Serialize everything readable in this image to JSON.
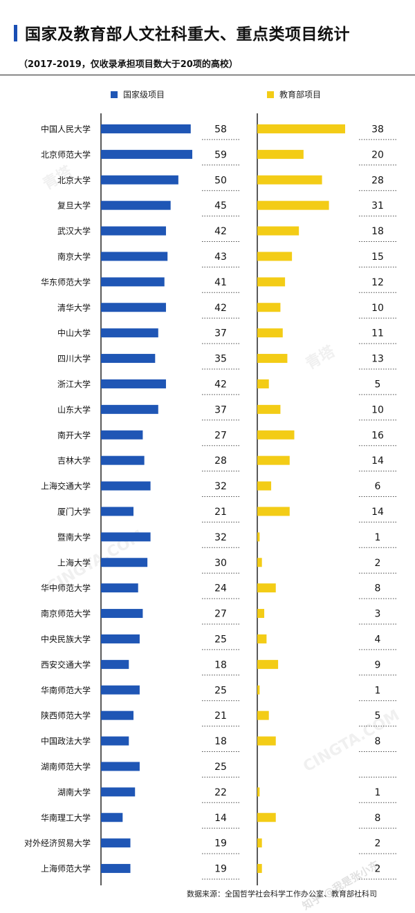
{
  "header": {
    "title": "国家及教育部人文社科重大、重点类项目统计",
    "subtitle": "（2017-2019，仅收录承担项目数大于20项的高校）"
  },
  "legend": {
    "national": "国家级项目",
    "ministry": "教育部项目"
  },
  "source": "数据来源：全国哲学社会科学工作办公室、教育部社科司",
  "watermark": {
    "brand": "青塔",
    "site": "CINGTA.COM",
    "footer_mark": "知乎 @我是张小东"
  },
  "colors": {
    "national": "#1f56b5",
    "ministry": "#f3cc16"
  },
  "chart_data": {
    "type": "bar",
    "orientation": "horizontal",
    "categories": [
      "中国人民大学",
      "北京师范大学",
      "北京大学",
      "复旦大学",
      "武汉大学",
      "南京大学",
      "华东师范大学",
      "清华大学",
      "中山大学",
      "四川大学",
      "浙江大学",
      "山东大学",
      "南开大学",
      "吉林大学",
      "上海交通大学",
      "厦门大学",
      "暨南大学",
      "上海大学",
      "华中师范大学",
      "南京师范大学",
      "中央民族大学",
      "西安交通大学",
      "华南师范大学",
      "陕西师范大学",
      "中国政法大学",
      "湖南师范大学",
      "湖南大学",
      "华南理工大学",
      "对外经济贸易大学",
      "上海师范大学"
    ],
    "series": [
      {
        "name": "国家级项目",
        "values": [
          58,
          59,
          50,
          45,
          42,
          43,
          41,
          42,
          37,
          35,
          42,
          37,
          27,
          28,
          32,
          21,
          32,
          30,
          24,
          27,
          25,
          18,
          25,
          21,
          18,
          25,
          22,
          14,
          19,
          19
        ]
      },
      {
        "name": "教育部项目",
        "values": [
          38,
          20,
          28,
          31,
          18,
          15,
          12,
          10,
          11,
          13,
          5,
          10,
          16,
          14,
          6,
          14,
          1,
          2,
          8,
          3,
          4,
          9,
          1,
          5,
          8,
          null,
          1,
          8,
          2,
          2
        ]
      }
    ],
    "value_labels": {
      "national": [
        "58",
        "59",
        "50",
        "45",
        "42",
        "43",
        "41",
        "42",
        "37",
        "35",
        "42",
        "37",
        "27",
        "28",
        "32",
        "21",
        "32",
        "30",
        "24",
        "27",
        "25",
        "18",
        "25",
        "21",
        "18",
        "25",
        "22",
        "14",
        "19",
        "19"
      ],
      "ministry": [
        "38",
        "20",
        "28",
        "31",
        "18",
        "15",
        "12",
        "10",
        "11",
        "13",
        "5",
        "10",
        "16",
        "14",
        "6",
        "14",
        "1",
        "2",
        "8",
        "3",
        "4",
        "9",
        "1",
        "5",
        "8",
        "",
        "1",
        "8",
        "2",
        "2"
      ]
    },
    "xlim": [
      0,
      60
    ],
    "grid": false,
    "legend_position": "top"
  }
}
